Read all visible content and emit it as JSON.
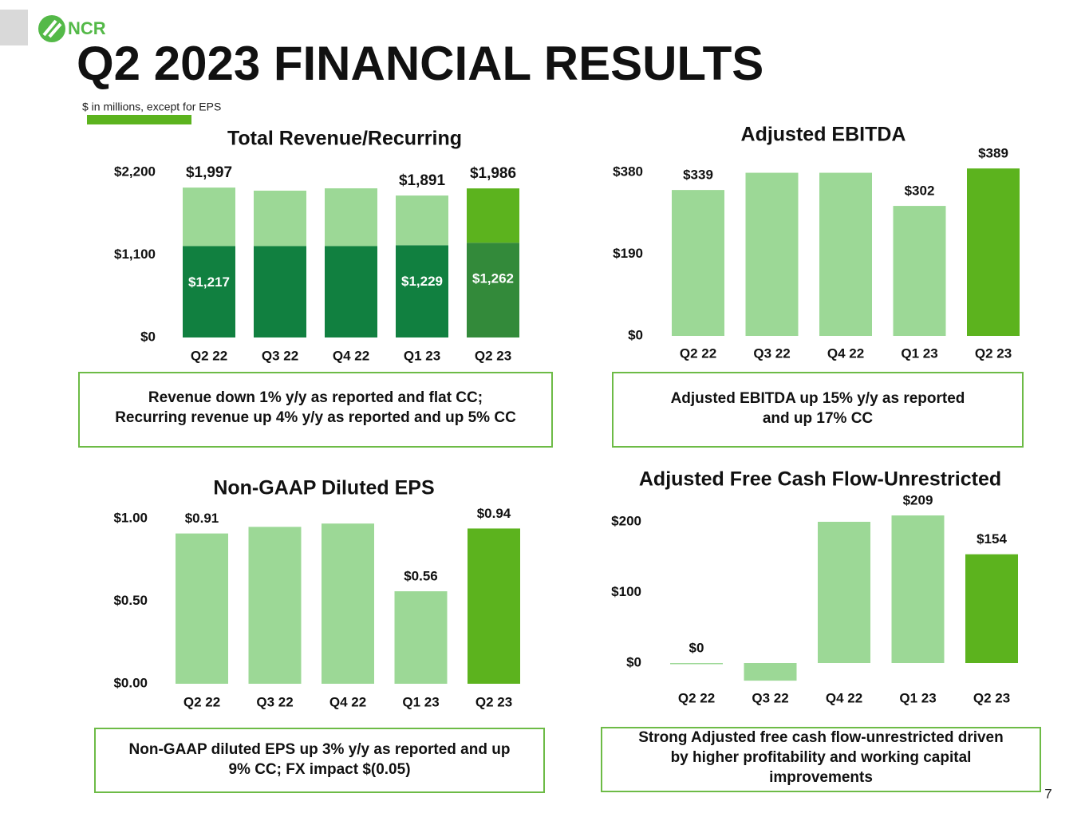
{
  "header": {
    "logo": "NCR",
    "title": "Q2 2023 FINANCIAL RESULTS",
    "subtitle": "$ in millions, except for EPS"
  },
  "page_number": "7",
  "chart_data": [
    {
      "type": "stacked_bar",
      "title": "Total Revenue/Recurring",
      "categories": [
        "Q2 22",
        "Q3 22",
        "Q4 22",
        "Q1 23",
        "Q2 23"
      ],
      "series": [
        {
          "colors": [
            "#118040",
            "#118040",
            "#118040",
            "#118040",
            "#338a3a"
          ],
          "values": [
            1217,
            1217,
            1217,
            1229,
            1262
          ],
          "value_labels": [
            "$1,217",
            null,
            null,
            "$1,229",
            "$1,262"
          ]
        },
        {
          "colors": [
            "#9cd896",
            "#9cd896",
            "#9cd896",
            "#9cd896",
            "#5cb31e"
          ],
          "values": [
            780,
            739,
            770,
            662,
            724
          ]
        }
      ],
      "totals": [
        1997,
        1956,
        1987,
        1891,
        1986
      ],
      "total_labels": [
        "$1,997",
        null,
        null,
        "$1,891",
        "$1,986"
      ],
      "ylim": [
        0,
        2200
      ],
      "yticks": [
        {
          "value": 0,
          "label": "$0"
        },
        {
          "value": 1100,
          "label": "$1,100"
        },
        {
          "value": 2200,
          "label": "$2,200"
        }
      ],
      "annotation": [
        "Revenue down 1% y/y as reported and flat CC;",
        "Recurring revenue up 4% y/y as reported and up 5% CC"
      ]
    },
    {
      "type": "bar",
      "title": "Adjusted EBITDA",
      "categories": [
        "Q2 22",
        "Q3 22",
        "Q4 22",
        "Q1 23",
        "Q2 23"
      ],
      "values": [
        339,
        379,
        379,
        302,
        389
      ],
      "value_labels": [
        "$339",
        null,
        null,
        "$302",
        "$389"
      ],
      "colors": [
        "#9cd896",
        "#9cd896",
        "#9cd896",
        "#9cd896",
        "#5cb31e"
      ],
      "ylim": [
        0,
        380
      ],
      "yticks": [
        {
          "value": 0,
          "label": "$0"
        },
        {
          "value": 190,
          "label": "$190"
        },
        {
          "value": 380,
          "label": "$380"
        }
      ],
      "annotation": [
        "Adjusted EBITDA up 15% y/y as reported",
        "and up 17% CC"
      ]
    },
    {
      "type": "bar",
      "title": "Non-GAAP Diluted EPS",
      "categories": [
        "Q2 22",
        "Q3 22",
        "Q4 22",
        "Q1 23",
        "Q2 23"
      ],
      "values": [
        0.91,
        0.95,
        0.97,
        0.56,
        0.94
      ],
      "value_labels": [
        "$0.91",
        null,
        null,
        "$0.56",
        "$0.94"
      ],
      "colors": [
        "#9cd896",
        "#9cd896",
        "#9cd896",
        "#9cd896",
        "#5cb31e"
      ],
      "ylim": [
        0,
        1
      ],
      "yticks": [
        {
          "value": 0,
          "label": "$0.00"
        },
        {
          "value": 0.5,
          "label": "$0.50"
        },
        {
          "value": 1,
          "label": "$1.00"
        }
      ],
      "annotation": [
        "Non-GAAP diluted EPS up 3% y/y as reported and up",
        "9% CC; FX impact $(0.05)"
      ]
    },
    {
      "type": "bar",
      "title": "Adjusted Free Cash Flow-Unrestricted",
      "categories": [
        "Q2 22",
        "Q3 22",
        "Q4 22",
        "Q1 23",
        "Q2 23"
      ],
      "values": [
        0,
        -25,
        200,
        209,
        154
      ],
      "value_labels": [
        "$0",
        null,
        null,
        "$209",
        "$154"
      ],
      "colors": [
        "#9cd896",
        "#9cd896",
        "#9cd896",
        "#9cd896",
        "#5cb31e"
      ],
      "ylim": [
        0,
        200
      ],
      "yticks": [
        {
          "value": 0,
          "label": "$0"
        },
        {
          "value": 100,
          "label": "$100"
        },
        {
          "value": 200,
          "label": "$200"
        }
      ],
      "annotation": [
        "Strong Adjusted free cash flow-unrestricted driven",
        "by higher profitability and working capital",
        "improvements"
      ]
    }
  ]
}
